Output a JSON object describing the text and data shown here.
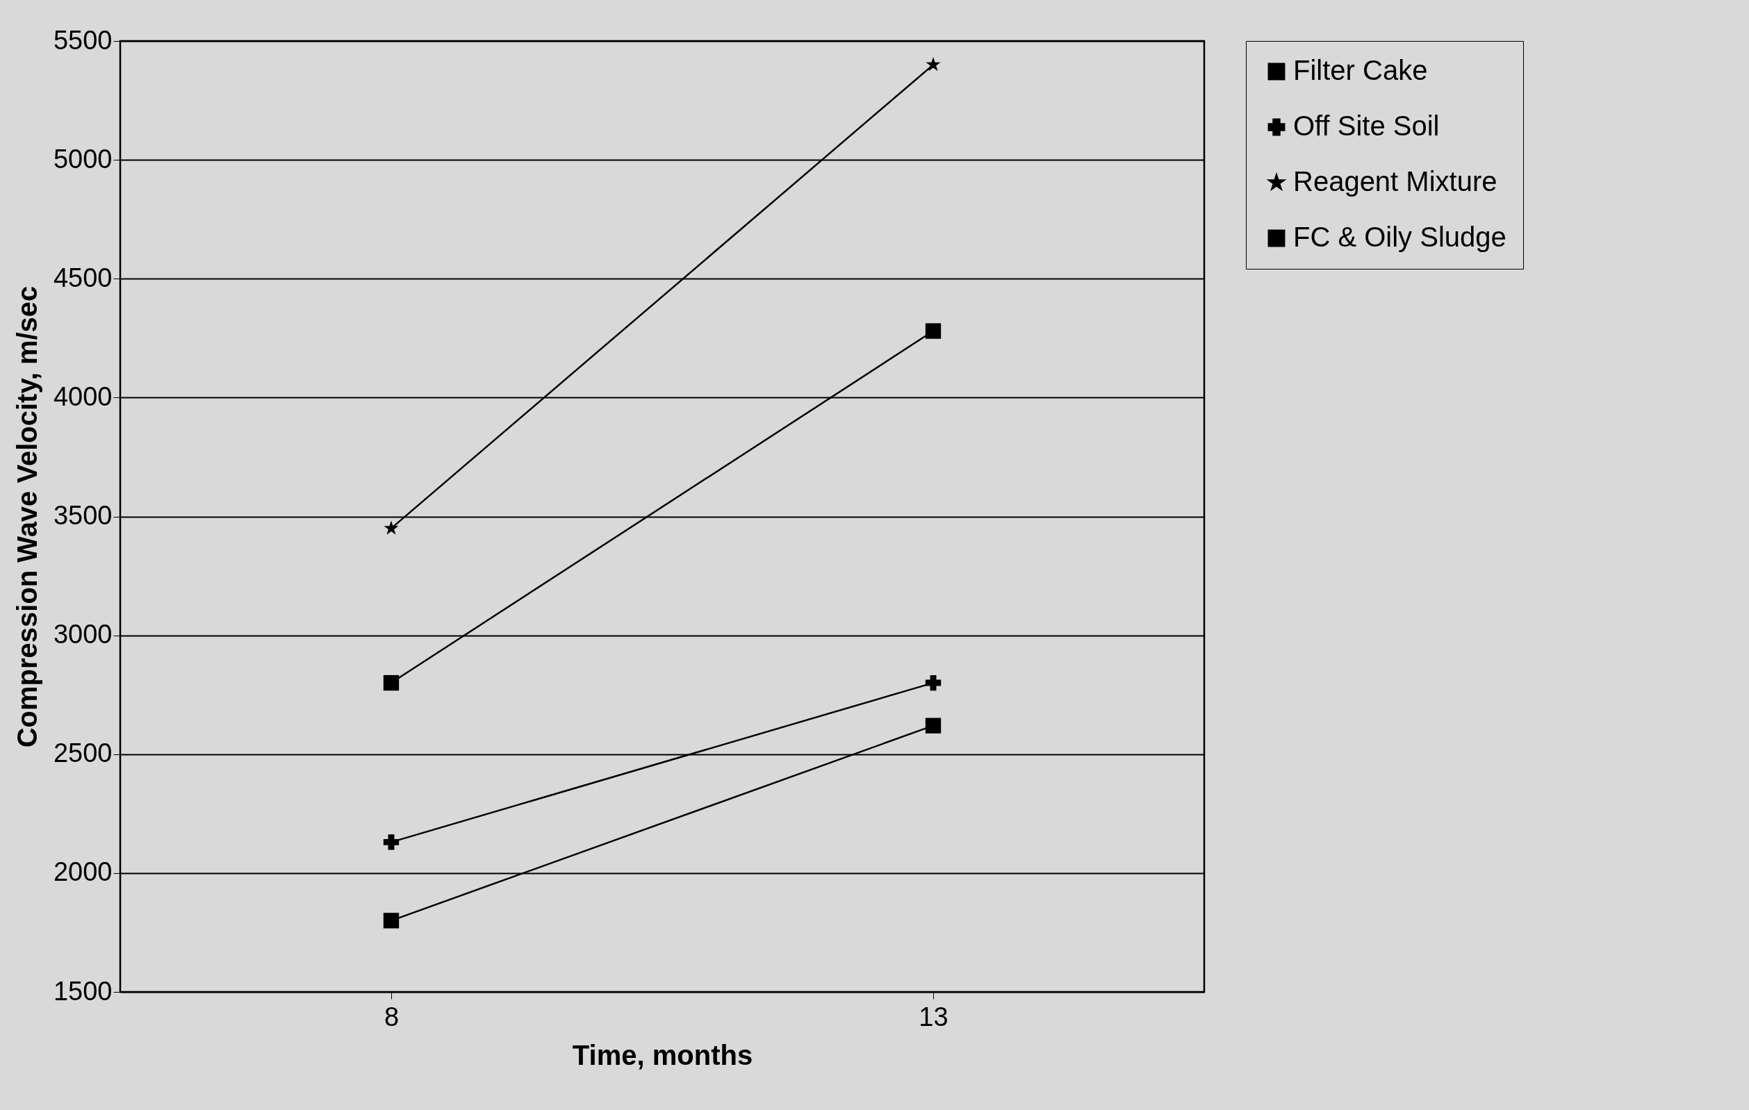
{
  "chart_data": {
    "type": "line",
    "xlabel": "Time, months",
    "ylabel": "Compression Wave Velocity, m/sec",
    "categories": [
      "8",
      "13"
    ],
    "ylim": [
      1500,
      5500
    ],
    "yticks": [
      1500,
      2000,
      2500,
      3000,
      3500,
      4000,
      4500,
      5000,
      5500
    ],
    "grid": "y",
    "legend": "top right",
    "line_style": "solid",
    "series": [
      {
        "name": "Filter Cake",
        "color": "#000000",
        "marker": "square",
        "values": [
          1800,
          2620
        ]
      },
      {
        "name": "Off Site Soil",
        "color": "#000000",
        "marker": "cross",
        "values": [
          2130,
          2800
        ]
      },
      {
        "name": "Reagent Mixture",
        "color": "#000000",
        "marker": "star",
        "values": [
          3450,
          5400
        ]
      },
      {
        "name": "FC & Oily Sludge",
        "color": "#000000",
        "marker": "square",
        "values": [
          2800,
          4280
        ]
      }
    ]
  }
}
